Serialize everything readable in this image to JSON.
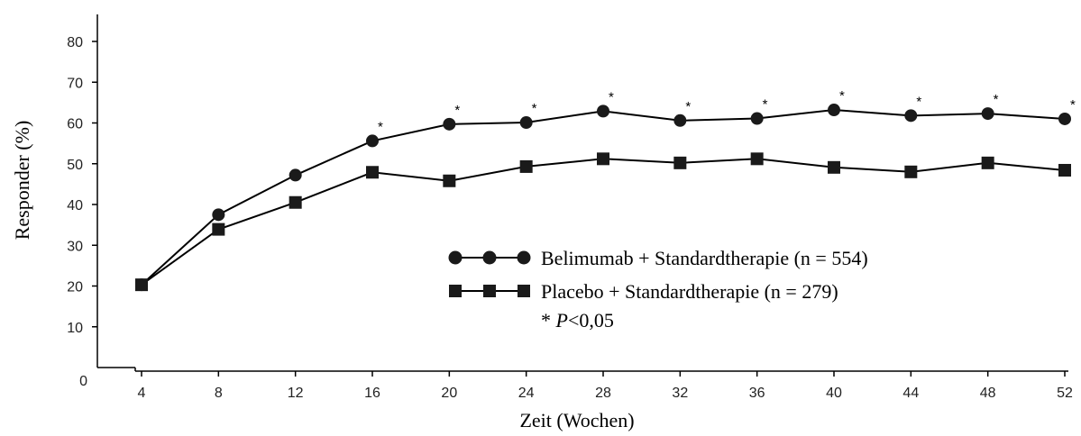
{
  "chart_data": {
    "type": "line",
    "xlabel": "Zeit (Wochen)",
    "ylabel": "Responder (%)",
    "ylim": [
      0,
      85
    ],
    "x": [
      4,
      8,
      12,
      16,
      20,
      24,
      28,
      32,
      36,
      40,
      44,
      48,
      52
    ],
    "y_ticks": [
      0,
      10,
      20,
      30,
      40,
      50,
      60,
      70,
      80
    ],
    "series": [
      {
        "name": "Belimumab + Standardtherapie (n = 554)",
        "marker": "circle",
        "values": [
          20.3,
          37.5,
          47.2,
          55.6,
          59.7,
          60.1,
          62.9,
          60.6,
          61.1,
          63.2,
          61.8,
          62.3,
          61.0
        ]
      },
      {
        "name": "Placebo + Standardtherapie (n = 279)",
        "marker": "square",
        "values": [
          20.3,
          33.9,
          40.5,
          47.9,
          45.8,
          49.3,
          51.2,
          50.2,
          51.2,
          49.1,
          48.0,
          50.2,
          48.4
        ]
      }
    ],
    "significant_x": [
      16,
      20,
      24,
      28,
      32,
      36,
      40,
      44,
      48,
      52
    ],
    "significance_marker": "*",
    "legend": {
      "placement": "center-right",
      "note_prefix": "* ",
      "note_p": "P",
      "note_suffix": "<0,05"
    },
    "colors": {
      "line": "#000000",
      "marker": "#1a1a1a"
    }
  }
}
